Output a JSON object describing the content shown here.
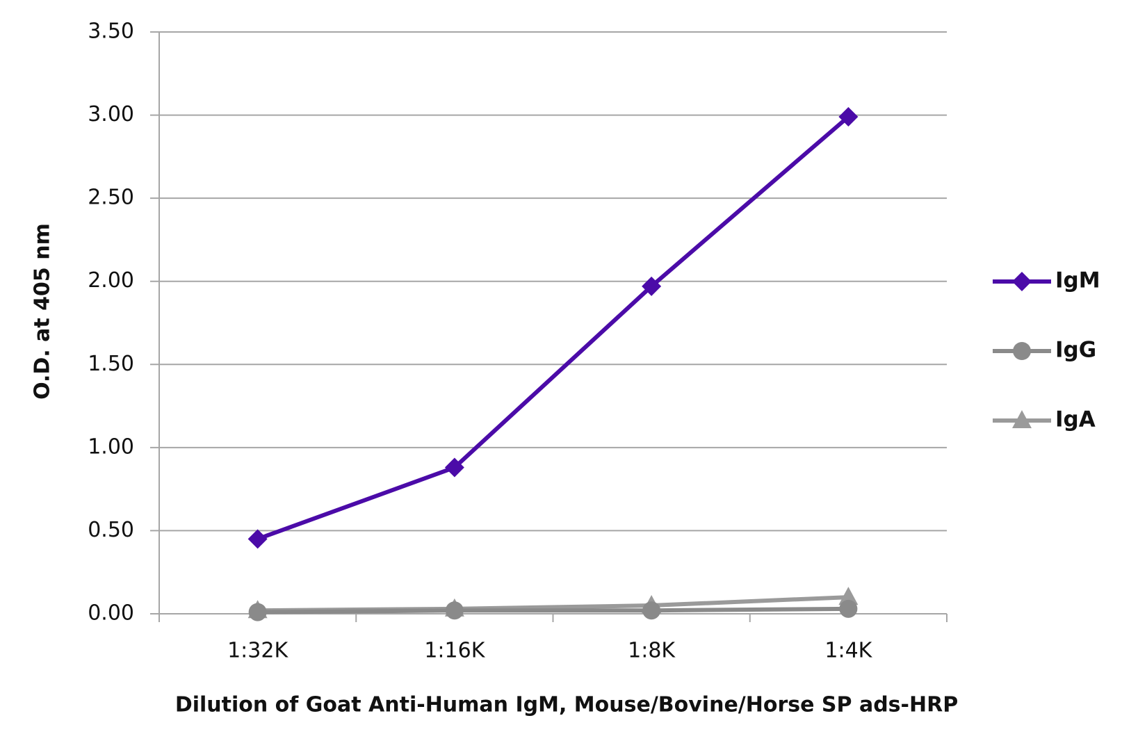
{
  "chart_data": {
    "type": "line",
    "x_label": "Dilution of Goat Anti-Human IgM, Mouse/Bovine/Horse SP ads-HRP",
    "y_label": "O.D. at 405 nm",
    "categories": [
      "1:32K",
      "1:16K",
      "1:8K",
      "1:4K"
    ],
    "series": [
      {
        "name": "IgM",
        "color": "#4b0ba8",
        "marker": "diamond",
        "values": [
          0.45,
          0.88,
          1.97,
          2.99
        ]
      },
      {
        "name": "IgG",
        "color": "#8a8a8a",
        "marker": "circle",
        "values": [
          0.01,
          0.02,
          0.02,
          0.03
        ]
      },
      {
        "name": "IgA",
        "color": "#9a9a9a",
        "marker": "triangle",
        "values": [
          0.02,
          0.03,
          0.05,
          0.1
        ]
      }
    ],
    "ylim": [
      0,
      3.5
    ],
    "yticks": [
      {
        "value": 0,
        "label": "0.00"
      },
      {
        "value": 0.5,
        "label": "0.50"
      },
      {
        "value": 1,
        "label": "1.00"
      },
      {
        "value": 1.5,
        "label": "1.50"
      },
      {
        "value": 2,
        "label": "2.00"
      },
      {
        "value": 2.5,
        "label": "2.50"
      },
      {
        "value": 3,
        "label": "3.00"
      },
      {
        "value": 3.5,
        "label": "3.50"
      }
    ],
    "grid": true,
    "legend": "right"
  }
}
